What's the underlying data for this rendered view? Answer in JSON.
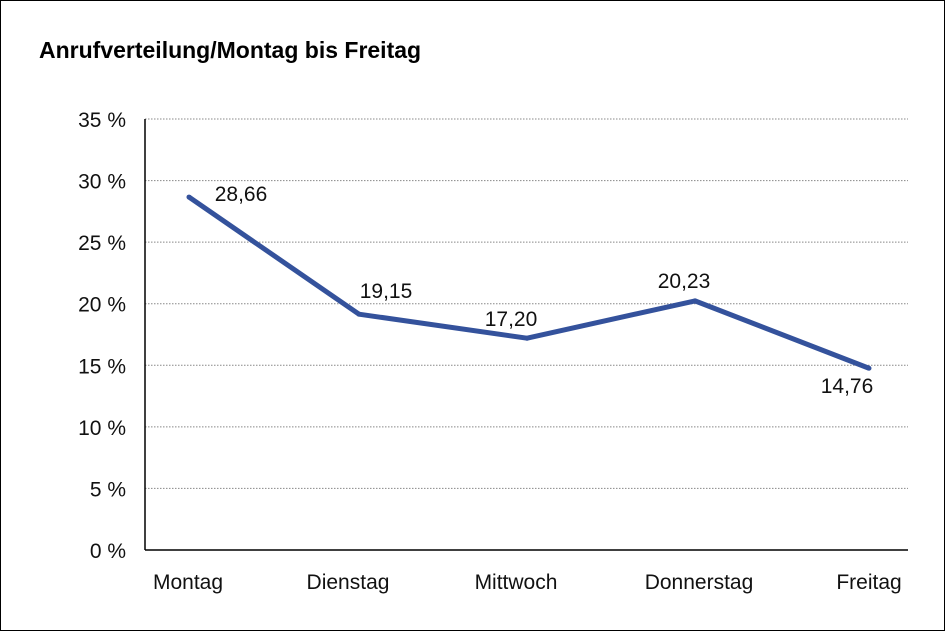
{
  "chart_data": {
    "type": "line",
    "title": "Anrufverteilung/Montag bis Freitag",
    "xlabel": "",
    "ylabel": "",
    "categories": [
      "Montag",
      "Dienstag",
      "Mittwoch",
      "Donnerstag",
      "Freitag"
    ],
    "series": [
      {
        "name": "Anrufverteilung",
        "values": [
          28.66,
          19.15,
          17.2,
          20.23,
          14.76
        ],
        "color": "#34529c"
      }
    ],
    "data_labels": [
      "28,66",
      "19,15",
      "17,20",
      "20,23",
      "14,76"
    ],
    "ylim": [
      0,
      35
    ],
    "yticks": [
      0,
      5,
      10,
      15,
      20,
      25,
      30,
      35
    ],
    "ytick_labels": [
      "0 %",
      "5 %",
      "10 %",
      "15 %",
      "20 %",
      "25 %",
      "30 %",
      "35 %"
    ],
    "grid": true,
    "legend": "none"
  }
}
